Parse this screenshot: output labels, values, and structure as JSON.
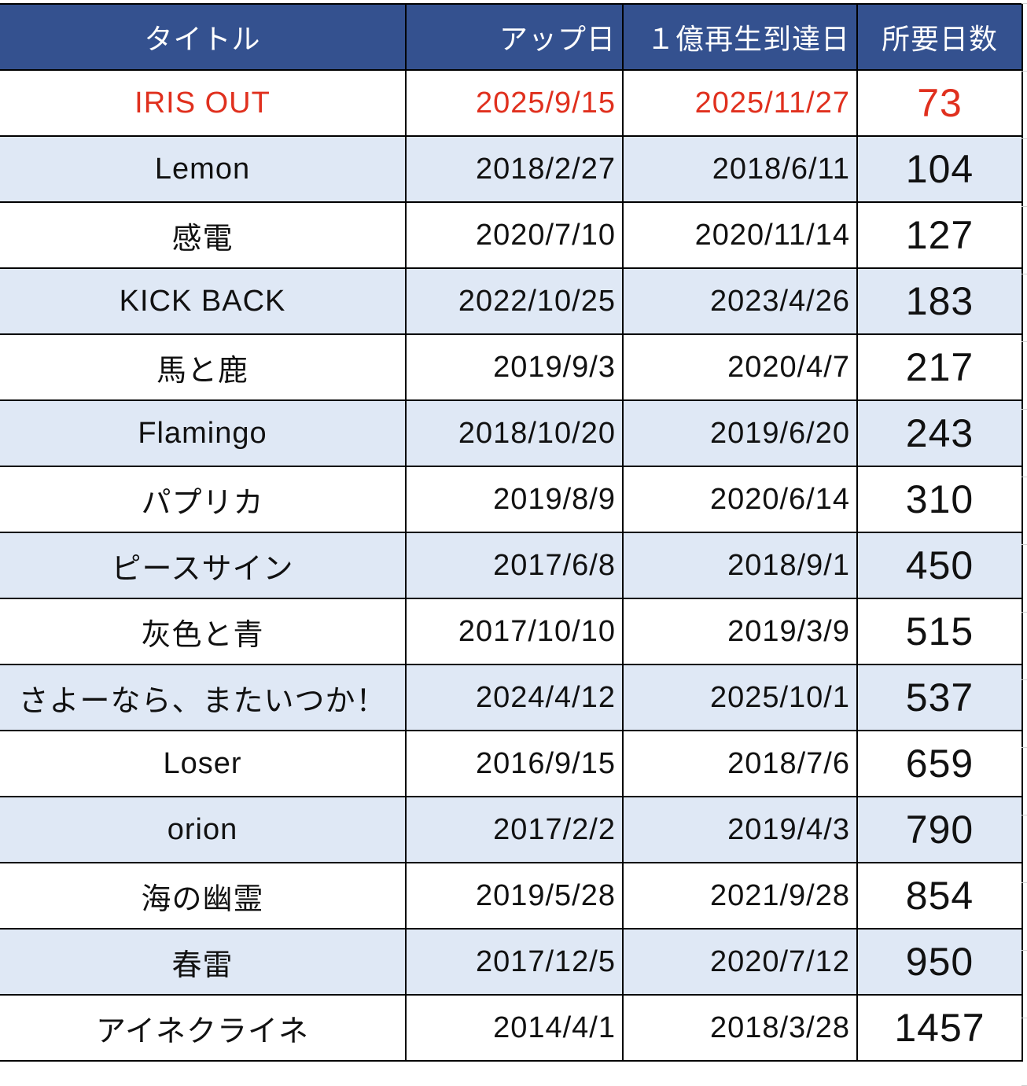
{
  "header": {
    "title": "タイトル",
    "upload_date": "アップ日",
    "billion_date": "１億再生到達日",
    "days": "所要日数"
  },
  "colors": {
    "header_bg": "#34518f",
    "alt_row": "#dfe8f5",
    "highlight": "#e0301e"
  },
  "rows": [
    {
      "title": "IRIS OUT",
      "upload": "2025/9/15",
      "reached": "2025/11/27",
      "days": "73",
      "highlight": true
    },
    {
      "title": "Lemon",
      "upload": "2018/2/27",
      "reached": "2018/6/11",
      "days": "104"
    },
    {
      "title": "感電",
      "upload": "2020/7/10",
      "reached": "2020/11/14",
      "days": "127"
    },
    {
      "title": "KICK BACK",
      "upload": "2022/10/25",
      "reached": "2023/4/26",
      "days": "183"
    },
    {
      "title": "馬と鹿",
      "upload": "2019/9/3",
      "reached": "2020/4/7",
      "days": "217"
    },
    {
      "title": "Flamingo",
      "upload": "2018/10/20",
      "reached": "2019/6/20",
      "days": "243"
    },
    {
      "title": "パプリカ",
      "upload": "2019/8/9",
      "reached": "2020/6/14",
      "days": "310"
    },
    {
      "title": "ピースサイン",
      "upload": "2017/6/8",
      "reached": "2018/9/1",
      "days": "450"
    },
    {
      "title": "灰色と青",
      "upload": "2017/10/10",
      "reached": "2019/3/9",
      "days": "515"
    },
    {
      "title": "さよーなら、またいつか！",
      "upload": "2024/4/12",
      "reached": "2025/10/1",
      "days": "537"
    },
    {
      "title": "Loser",
      "upload": "2016/9/15",
      "reached": "2018/7/6",
      "days": "659"
    },
    {
      "title": "orion",
      "upload": "2017/2/2",
      "reached": "2019/4/3",
      "days": "790"
    },
    {
      "title": "海の幽霊",
      "upload": "2019/5/28",
      "reached": "2021/9/28",
      "days": "854"
    },
    {
      "title": "春雷",
      "upload": "2017/12/5",
      "reached": "2020/7/12",
      "days": "950"
    },
    {
      "title": "アイネクライネ",
      "upload": "2014/4/1",
      "reached": "2018/3/28",
      "days": "1457"
    }
  ]
}
